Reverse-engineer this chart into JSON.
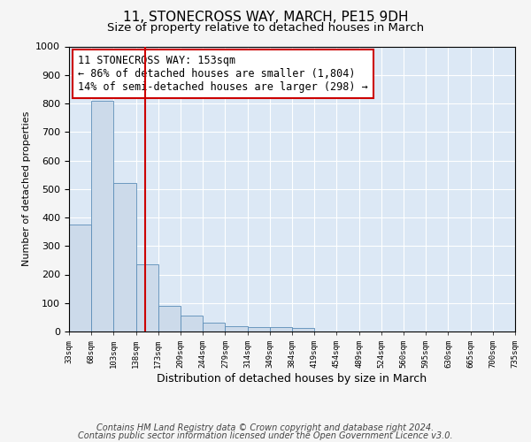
{
  "title": "11, STONECROSS WAY, MARCH, PE15 9DH",
  "subtitle": "Size of property relative to detached houses in March",
  "xlabel": "Distribution of detached houses by size in March",
  "ylabel": "Number of detached properties",
  "bins_labels": [
    "33sqm",
    "68sqm",
    "103sqm",
    "138sqm",
    "173sqm",
    "209sqm",
    "244sqm",
    "279sqm",
    "314sqm",
    "349sqm",
    "384sqm",
    "419sqm",
    "454sqm",
    "489sqm",
    "524sqm",
    "560sqm",
    "595sqm",
    "630sqm",
    "665sqm",
    "700sqm",
    "735sqm"
  ],
  "bar_heights": [
    375,
    810,
    520,
    235,
    90,
    55,
    30,
    20,
    15,
    15,
    12,
    0,
    0,
    0,
    0,
    0,
    0,
    0,
    0,
    0
  ],
  "bar_color": "#ccdaea",
  "bar_edge_color": "#5b8db8",
  "ylim": [
    0,
    1000
  ],
  "yticks": [
    0,
    100,
    200,
    300,
    400,
    500,
    600,
    700,
    800,
    900,
    1000
  ],
  "vline_color": "#cc0000",
  "annotation_text": "11 STONECROSS WAY: 153sqm\n← 86% of detached houses are smaller (1,804)\n14% of semi-detached houses are larger (298) →",
  "annotation_box_color": "#cc0000",
  "footer1": "Contains HM Land Registry data © Crown copyright and database right 2024.",
  "footer2": "Contains public sector information licensed under the Open Government Licence v3.0.",
  "bg_color": "#dce8f5",
  "fig_bg_color": "#f5f5f5",
  "grid_color": "#ffffff",
  "title_fontsize": 11,
  "subtitle_fontsize": 9.5,
  "annot_fontsize": 8.5,
  "ylabel_fontsize": 8,
  "xlabel_fontsize": 9,
  "footer_fontsize": 7
}
